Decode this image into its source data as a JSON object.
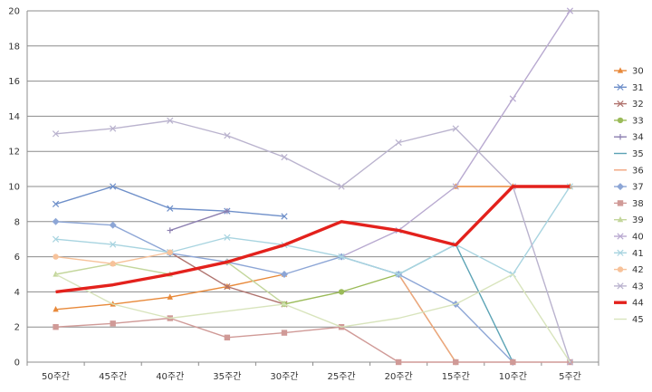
{
  "chart_data": {
    "type": "line",
    "categories": [
      "50주간",
      "45주간",
      "40주간",
      "35주간",
      "30주간",
      "25주간",
      "20주간",
      "15주간",
      "10주간",
      "5주간"
    ],
    "ylim": [
      0,
      20
    ],
    "yticks": [
      0,
      2,
      4,
      6,
      8,
      10,
      12,
      14,
      16,
      18,
      20
    ],
    "grid": true,
    "legend_position": "right",
    "series": [
      {
        "name": "30",
        "color": "#E8893A",
        "marker": "triangle",
        "values": [
          3.0,
          3.3,
          3.7,
          4.3,
          5.0,
          null,
          null,
          10.0,
          10.0,
          10.0
        ]
      },
      {
        "name": "31",
        "color": "#6E8FC9",
        "marker": "x",
        "values": [
          9.0,
          10.0,
          8.75,
          8.6,
          8.3,
          null,
          null,
          null,
          null,
          null
        ]
      },
      {
        "name": "32",
        "color": "#B0736E",
        "marker": "x",
        "values": [
          null,
          null,
          6.25,
          4.3,
          3.3,
          null,
          null,
          null,
          null,
          null
        ]
      },
      {
        "name": "33",
        "color": "#9BBB59",
        "marker": "circle",
        "values": [
          null,
          null,
          null,
          null,
          3.3,
          4.0,
          5.0,
          0,
          null,
          null
        ]
      },
      {
        "name": "34",
        "color": "#8C7FB0",
        "marker": "plus",
        "values": [
          null,
          null,
          7.5,
          8.6,
          null,
          null,
          null,
          null,
          null,
          null
        ]
      },
      {
        "name": "35",
        "color": "#5BA3B5",
        "marker": "none",
        "values": [
          null,
          null,
          null,
          null,
          null,
          6.0,
          5.0,
          6.7,
          0,
          null
        ]
      },
      {
        "name": "36",
        "color": "#F2A47E",
        "marker": "none",
        "values": [
          null,
          null,
          null,
          null,
          null,
          null,
          5.0,
          0,
          null,
          null
        ]
      },
      {
        "name": "37",
        "color": "#8DA6D6",
        "marker": "diamond",
        "values": [
          8.0,
          7.8,
          6.2,
          5.7,
          5.0,
          6.0,
          5.0,
          3.3,
          0,
          null
        ]
      },
      {
        "name": "38",
        "color": "#D09A97",
        "marker": "square",
        "values": [
          2.0,
          2.2,
          2.5,
          1.4,
          1.67,
          2.0,
          0,
          0,
          0,
          0
        ]
      },
      {
        "name": "39",
        "color": "#C3D69B",
        "marker": "triangle",
        "values": [
          5.0,
          5.6,
          5.0,
          5.7,
          3.3,
          null,
          null,
          null,
          null,
          null
        ]
      },
      {
        "name": "40",
        "color": "#B8A9D0",
        "marker": "x",
        "values": [
          null,
          null,
          null,
          null,
          null,
          6.0,
          7.5,
          10.0,
          15.0,
          20.0
        ]
      },
      {
        "name": "41",
        "color": "#A8D4E0",
        "marker": "x",
        "values": [
          7.0,
          6.7,
          6.25,
          7.1,
          6.67,
          6.0,
          5.0,
          6.7,
          5.0,
          10.0
        ]
      },
      {
        "name": "42",
        "color": "#F7C29A",
        "marker": "circle",
        "values": [
          6.0,
          5.6,
          6.25,
          null,
          null,
          null,
          null,
          null,
          null,
          null
        ]
      },
      {
        "name": "43",
        "color": "#BAB3CE",
        "marker": "x",
        "values": [
          13.0,
          13.3,
          13.75,
          12.9,
          11.67,
          10.0,
          12.5,
          13.3,
          10.0,
          0
        ]
      },
      {
        "name": "44",
        "color": "#E3211C",
        "marker": "none",
        "values": [
          4.0,
          4.4,
          5.0,
          5.7,
          6.67,
          8.0,
          7.5,
          6.67,
          10.0,
          10.0
        ]
      },
      {
        "name": "45",
        "color": "#D8E4BC",
        "marker": "none",
        "values": [
          5.0,
          3.3,
          2.5,
          2.9,
          3.3,
          2.0,
          2.5,
          3.3,
          5.0,
          0
        ]
      }
    ]
  }
}
